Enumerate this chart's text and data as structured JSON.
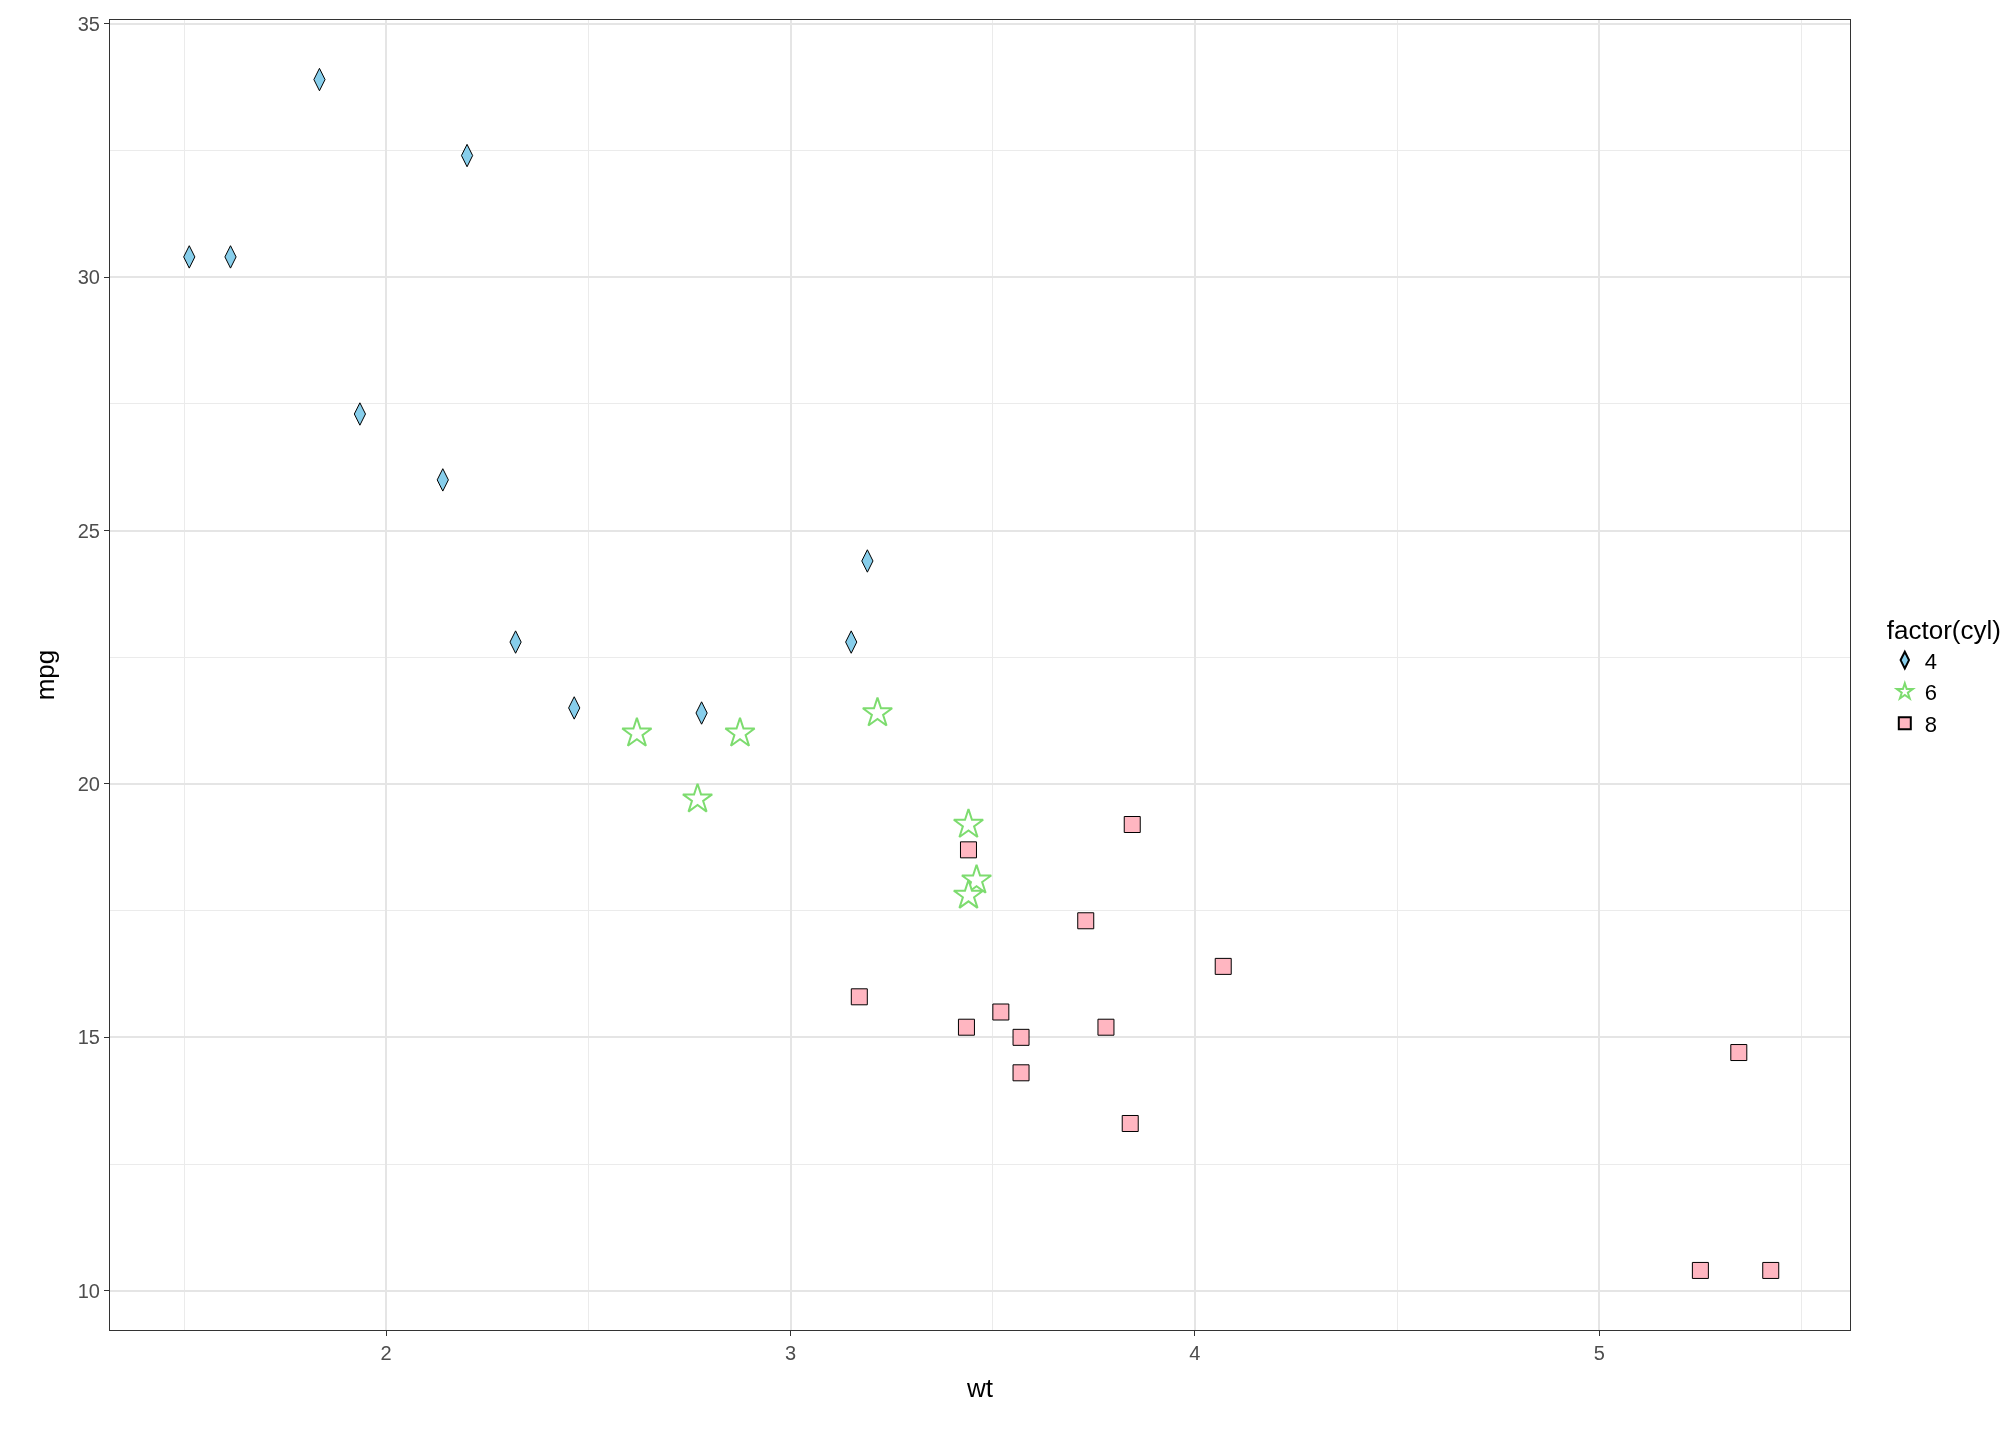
{
  "chart_data": {
    "type": "scatter",
    "xlabel": "wt",
    "ylabel": "mpg",
    "legend_title": "factor(cyl)",
    "legend": "right",
    "grid": true,
    "xlim": [
      1.317,
      5.62
    ],
    "xticks": [
      2,
      3,
      4,
      5
    ],
    "ylim": [
      9.225,
      35.075
    ],
    "yticks": [
      10,
      15,
      20,
      25,
      30,
      35
    ],
    "series": [
      {
        "name": "4",
        "color": "#87ceeb",
        "marker": "diamond",
        "x": [
          2.32,
          3.19,
          3.15,
          2.2,
          1.615,
          1.835,
          2.465,
          1.935,
          2.14,
          1.513,
          2.78
        ],
        "values": [
          22.8,
          24.4,
          22.8,
          32.4,
          30.4,
          33.9,
          21.5,
          27.3,
          26.0,
          30.4,
          21.4
        ]
      },
      {
        "name": "6",
        "color": "#7ddc6f",
        "marker": "star",
        "x": [
          2.62,
          2.875,
          3.215,
          3.46,
          3.44,
          3.44,
          2.77
        ],
        "values": [
          21.0,
          21.0,
          21.4,
          18.1,
          19.2,
          17.8,
          19.7
        ]
      },
      {
        "name": "8",
        "color": "#ffb6c1",
        "marker": "square",
        "x": [
          3.44,
          3.57,
          4.07,
          3.73,
          3.78,
          5.25,
          5.424,
          5.345,
          3.52,
          3.435,
          3.84,
          3.845,
          3.17,
          3.57
        ],
        "values": [
          18.7,
          14.3,
          16.4,
          17.3,
          15.2,
          10.4,
          10.4,
          14.7,
          15.5,
          15.2,
          13.3,
          19.2,
          15.8,
          15.0
        ]
      }
    ]
  }
}
